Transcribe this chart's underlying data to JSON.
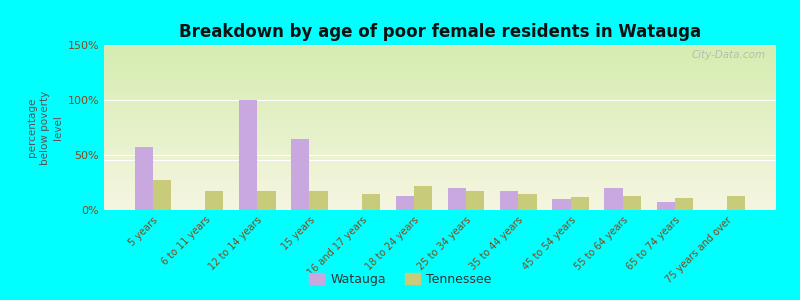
{
  "title": "Breakdown by age of poor female residents in Watauga",
  "ylabel": "percentage\nbelow poverty\nlevel",
  "categories": [
    "5 years",
    "6 to 11 years",
    "12 to 14 years",
    "15 years",
    "16 and 17 years",
    "18 to 24 years",
    "25 to 34 years",
    "35 to 44 years",
    "45 to 54 years",
    "55 to 64 years",
    "65 to 74 years",
    "75 years and over"
  ],
  "watauga": [
    57,
    0,
    100,
    65,
    0,
    13,
    20,
    17,
    10,
    20,
    7,
    0
  ],
  "tennessee": [
    27,
    17,
    17,
    17,
    15,
    22,
    17,
    15,
    12,
    13,
    11,
    13
  ],
  "watauga_color": "#c9a8e0",
  "tennessee_color": "#c8cc7a",
  "bg_color": "#00ffff",
  "plot_bg_top": "#d5ecb0",
  "plot_bg_bottom": "#f0f0e0",
  "title_color": "#111111",
  "ylabel_color": "#555555",
  "tick_color": "#8b4513",
  "ylim": [
    0,
    150
  ],
  "yticks": [
    0,
    50,
    100,
    150
  ],
  "ytick_labels": [
    "0%",
    "50%",
    "100%",
    "150%"
  ],
  "bar_width": 0.35,
  "watermark": "City-Data.com",
  "legend_watauga": "Watauga",
  "legend_tennessee": "Tennessee"
}
